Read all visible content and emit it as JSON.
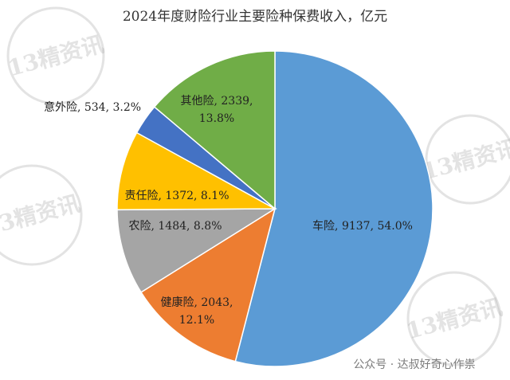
{
  "chart_data": {
    "type": "pie",
    "title": "2024年度财险行业主要险种保费收入，亿元",
    "slices": [
      {
        "label": "车险",
        "value": 9137,
        "percent": "54.0%",
        "color": "#5B9BD5"
      },
      {
        "label": "健康险",
        "value": 2043,
        "percent": "12.1%",
        "color": "#ED7D31"
      },
      {
        "label": "农险",
        "value": 1484,
        "percent": "8.8%",
        "color": "#A5A5A5"
      },
      {
        "label": "责任险",
        "value": 1372,
        "percent": "8.1%",
        "color": "#FFC000"
      },
      {
        "label": "意外险",
        "value": 534,
        "percent": "3.2%",
        "color": "#4472C4"
      },
      {
        "label": "其他险",
        "value": 2339,
        "percent": "13.8%",
        "color": "#70AD47"
      }
    ],
    "start_angle": "top",
    "direction": "clockwise",
    "legend": "none"
  },
  "watermark": {
    "badge_text": "13精资讯",
    "footer_text": "公众号 · 达叔好奇心作祟"
  }
}
